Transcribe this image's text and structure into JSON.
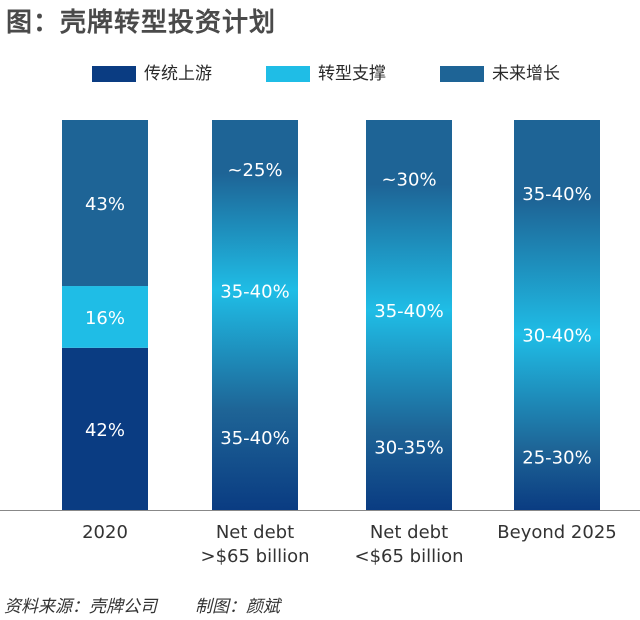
{
  "title": "图：壳牌转型投资计划",
  "legend": [
    {
      "label": "传统上游",
      "color": "#0a3c82"
    },
    {
      "label": "转型支撑",
      "color": "#1fbde6"
    },
    {
      "label": "未来增长",
      "color": "#1e6496"
    }
  ],
  "source": {
    "data_source": "资料来源：壳牌公司",
    "author": "制图：颜斌"
  },
  "colors": {
    "dark": "#0a3c82",
    "cyan": "#1fbde6",
    "mid": "#1e6496",
    "axis": "#888888",
    "tick_text": "#333333",
    "bar_text": "#ffffff"
  },
  "chart_data": {
    "type": "bar",
    "stacked": true,
    "gradient_style": true,
    "categories": [
      [
        "2020"
      ],
      [
        "Net debt",
        ">$65 billion"
      ],
      [
        "Net debt",
        "<$65 billion"
      ],
      [
        "Beyond 2025"
      ]
    ],
    "series": [
      {
        "name": "传统上游",
        "values": [
          42,
          37.5,
          32.5,
          27.5
        ],
        "labels": [
          "42%",
          "35-40%",
          "30-35%",
          "25-30%"
        ]
      },
      {
        "name": "转型支撑",
        "values": [
          16,
          37.5,
          37.5,
          35
        ],
        "labels": [
          "16%",
          "35-40%",
          "35-40%",
          "30-40%"
        ]
      },
      {
        "name": "未来增长",
        "values": [
          43,
          25,
          30,
          37.5
        ],
        "labels": [
          "43%",
          "~25%",
          "~30%",
          "35-40%"
        ]
      }
    ],
    "ylim": [
      0,
      100
    ],
    "legend_position": "top",
    "grid": false
  }
}
